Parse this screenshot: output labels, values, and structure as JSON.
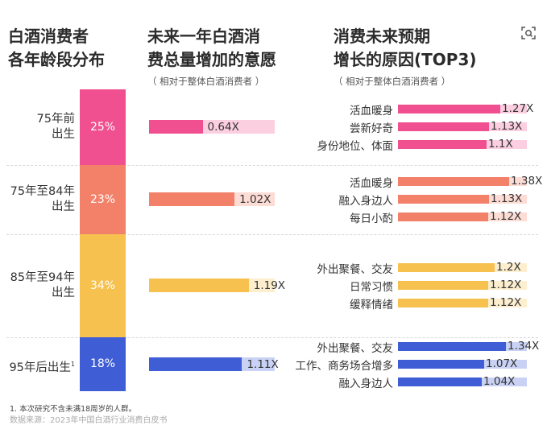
{
  "headings": {
    "col1": [
      "白酒消费者",
      "各年龄段分布"
    ],
    "col2": [
      "未来一年白酒消",
      "费总量增加的意愿"
    ],
    "col2_sub": "（ 相对于整体白酒消费者 ）",
    "col3": [
      "消费未来预期",
      "增长的原因(TOP3)"
    ],
    "col3_sub": "（ 相对于整体白酒消费者 ）"
  },
  "footnote": "1. 本次研究不含未满18周岁的人群。",
  "source_partial": "数据来源：2023年中国白酒行业消费白皮书",
  "icons": {
    "top_right": "scan-icon"
  },
  "colors": {
    "g1": "#f0508f",
    "g2": "#f3816a",
    "g3": "#f6c14f",
    "g4": "#3f5ed6"
  },
  "chart_data": {
    "type": "table",
    "age_groups": [
      {
        "label_lines": [
          "75年前",
          "出生"
        ],
        "share": "25%",
        "share_value": 25,
        "intent": {
          "value": 0.64,
          "label": "0.64X"
        },
        "reasons": [
          {
            "name": "活血暖身",
            "value": 1.27,
            "label": "1.27X"
          },
          {
            "name": "尝新好奇",
            "value": 1.13,
            "label": "1.13X"
          },
          {
            "name": "身份地位、体面",
            "value": 1.1,
            "label": "1.1X"
          }
        ]
      },
      {
        "label_lines": [
          "75年至84年",
          "出生"
        ],
        "share": "23%",
        "share_value": 23,
        "intent": {
          "value": 1.02,
          "label": "1.02X"
        },
        "reasons": [
          {
            "name": "活血暖身",
            "value": 1.38,
            "label": "1.38X"
          },
          {
            "name": "融入身边人",
            "value": 1.13,
            "label": "1.13X"
          },
          {
            "name": "每日小酌",
            "value": 1.12,
            "label": "1.12X"
          }
        ]
      },
      {
        "label_lines": [
          "85年至94年",
          "出生"
        ],
        "share": "34%",
        "share_value": 34,
        "intent": {
          "value": 1.19,
          "label": "1.19X"
        },
        "reasons": [
          {
            "name": "外出聚餐、交友",
            "value": 1.2,
            "label": "1.2X"
          },
          {
            "name": "日常习惯",
            "value": 1.12,
            "label": "1.12X"
          },
          {
            "name": "缓释情绪",
            "value": 1.12,
            "label": "1.12X"
          }
        ]
      },
      {
        "label_lines": [
          "95年后出生"
        ],
        "label_sup": "1",
        "share": "18%",
        "share_value": 18,
        "intent": {
          "value": 1.11,
          "label": "1.11X"
        },
        "reasons": [
          {
            "name": "外出聚餐、交友",
            "value": 1.34,
            "label": "1.34X"
          },
          {
            "name": "工作、商务场合增多",
            "value": 1.07,
            "label": "1.07X"
          },
          {
            "name": "融入身边人",
            "value": 1.04,
            "label": "1.04X"
          }
        ]
      }
    ]
  }
}
